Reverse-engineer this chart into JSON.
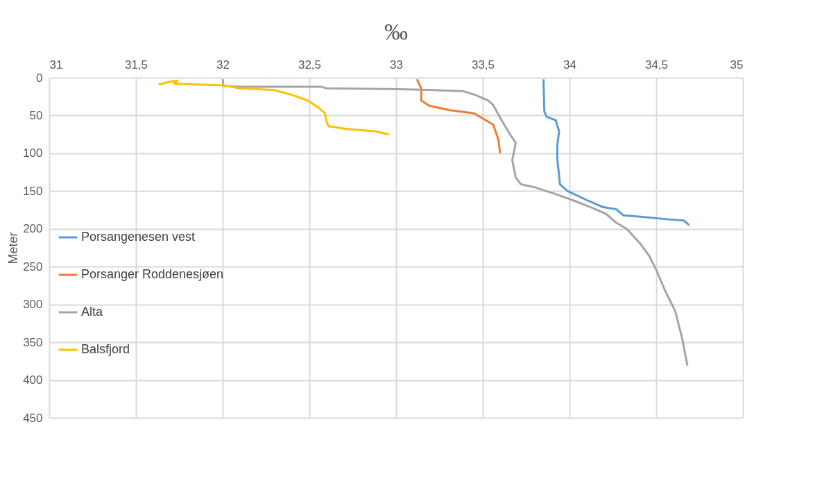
{
  "chart_data": {
    "type": "line",
    "title": "‰",
    "ylabel": "Meter",
    "xlim": [
      31,
      35
    ],
    "xticks": [
      31,
      {
        "value": 31.5,
        "label": "31,5"
      },
      32,
      {
        "value": 32.5,
        "label": "32,5"
      },
      33,
      {
        "value": 33.5,
        "label": "33,5"
      },
      34,
      {
        "value": 34.5,
        "label": "34,5"
      },
      35
    ],
    "ylim": [
      450,
      0
    ],
    "yticks": [
      0,
      50,
      100,
      150,
      200,
      250,
      300,
      350,
      400,
      450
    ],
    "grid": true,
    "legend": "left",
    "line_style": "solid",
    "marker": "none",
    "series": [
      {
        "name": "Porsangenesen vest",
        "color": "#5b9bd5",
        "x": [
          33.85,
          33.855,
          33.87,
          33.92,
          33.94,
          33.93,
          33.93,
          33.94,
          33.945,
          33.99,
          34.11,
          34.19,
          34.27,
          34.31,
          34.41,
          34.55,
          34.66,
          34.69
        ],
        "values": [
          2,
          45,
          52,
          56,
          71,
          89,
          109,
          129,
          141,
          150,
          163,
          171,
          174,
          182,
          184,
          187,
          189,
          195
        ]
      },
      {
        "name": "Porsanger Roddenesjøen",
        "color": "#ed7d31",
        "x": [
          33.12,
          33.145,
          33.145,
          33.19,
          33.31,
          33.45,
          33.5,
          33.56,
          33.59,
          33.6
        ],
        "values": [
          2,
          14,
          30,
          37,
          43,
          47,
          54,
          62,
          82,
          100
        ]
      },
      {
        "name": "Alta",
        "color": "#a5a5a5",
        "x": [
          32.0,
          32.005,
          32.1,
          32.57,
          32.6,
          32.96,
          33.19,
          33.39,
          33.46,
          33.53,
          33.56,
          33.6,
          33.66,
          33.69,
          33.67,
          33.69,
          33.72,
          33.8,
          33.92,
          34.03,
          34.13,
          34.21,
          34.27,
          34.33,
          34.41,
          34.46,
          34.5,
          34.55,
          34.61,
          34.65,
          34.68
        ],
        "values": [
          2,
          11,
          12,
          12,
          14,
          15,
          16,
          18,
          23,
          30,
          36,
          53,
          76,
          86,
          109,
          132,
          141,
          145,
          154,
          163,
          172,
          180,
          192,
          200,
          220,
          236,
          254,
          281,
          309,
          345,
          381
        ]
      },
      {
        "name": "Balsfjord",
        "color": "#ffc000",
        "x": [
          31.63,
          31.7,
          31.74,
          31.72,
          32.0,
          32.1,
          32.29,
          32.39,
          32.49,
          32.55,
          32.59,
          32.6,
          32.61,
          32.72,
          32.88,
          32.96
        ],
        "values": [
          9,
          5,
          4,
          8,
          10,
          14,
          16,
          22,
          30,
          39,
          47,
          59,
          64,
          68,
          71,
          75
        ]
      }
    ]
  }
}
